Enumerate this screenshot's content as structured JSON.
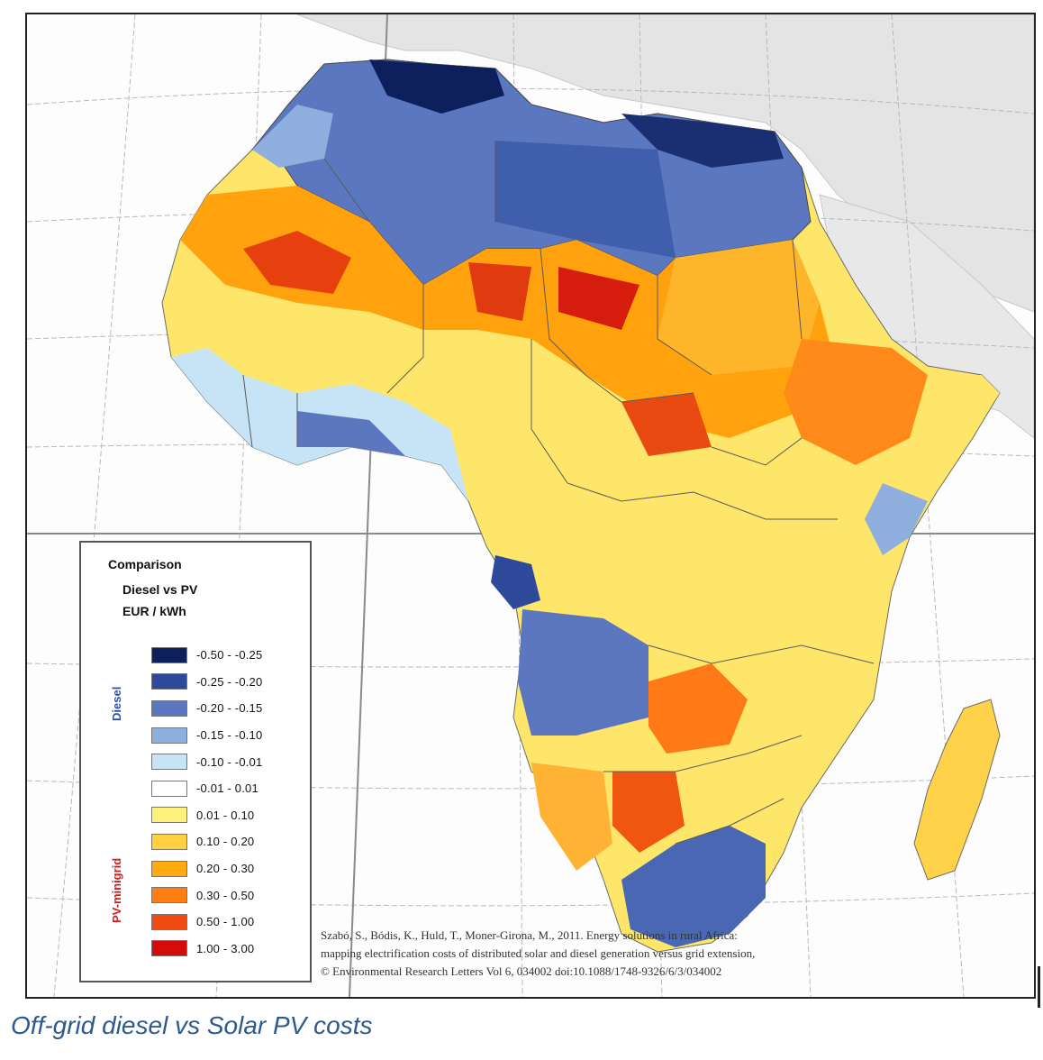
{
  "legend": {
    "title_line1": "Comparison",
    "title_line2": "Diesel vs PV",
    "title_line3": "EUR / kWh",
    "group_diesel": "Diesel",
    "group_pv": "PV-minigrid",
    "classes": [
      {
        "label": "-0.50 - -0.25",
        "color": "#0d1f5c"
      },
      {
        "label": "-0.25 - -0.20",
        "color": "#2f4a9a"
      },
      {
        "label": "-0.20 - -0.15",
        "color": "#5b77bf"
      },
      {
        "label": "-0.15 - -0.10",
        "color": "#8fb0de"
      },
      {
        "label": "-0.10 - -0.01",
        "color": "#c6e4f5"
      },
      {
        "label": "-0.01 - 0.01",
        "color": "#ffffff"
      },
      {
        "label": "0.01 - 0.10",
        "color": "#fff27a"
      },
      {
        "label": "0.10 - 0.20",
        "color": "#ffd040"
      },
      {
        "label": "0.20 - 0.30",
        "color": "#ffaa10"
      },
      {
        "label": "0.30 - 0.50",
        "color": "#ff7e14"
      },
      {
        "label": "0.50 - 1.00",
        "color": "#f04a10"
      },
      {
        "label": "1.00 - 3.00",
        "color": "#d40c0c"
      }
    ]
  },
  "citation": {
    "line1": "Szabó, S., Bódis, K., Huld, T., Moner-Girona, M., 2011. Energy solutions in rural Africa:",
    "line2": "mapping electrification costs of distributed solar and diesel generation versus grid extension,",
    "line3": "© Environmental Research Letters Vol 6, 034002 doi:10.1088/1748-9326/6/3/034002"
  },
  "caption": "Off-grid diesel vs Solar PV costs"
}
